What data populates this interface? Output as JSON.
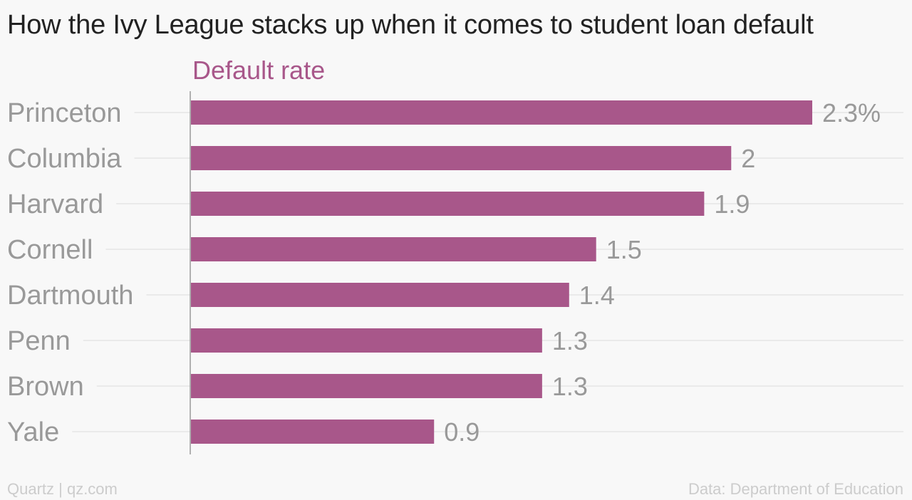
{
  "title": "How the Ivy League stacks up when it comes to student loan default",
  "footer": {
    "source_left": "Quartz | qz.com",
    "source_right": "Data: Department of Education"
  },
  "colors": {
    "bar": "#a8578a",
    "series_label": "#a8578a",
    "category_text": "#999999",
    "value_text": "#999999",
    "gridline": "#e6e6e6",
    "axis": "#999999",
    "title": "#222222",
    "footer": "#cccccc"
  },
  "chart_data": {
    "type": "bar",
    "orientation": "horizontal",
    "title": "How the Ivy League stacks up when it comes to student loan default",
    "series_label": "Default rate",
    "categories": [
      "Princeton",
      "Columbia",
      "Harvard",
      "Cornell",
      "Dartmouth",
      "Penn",
      "Brown",
      "Yale"
    ],
    "values": [
      2.3,
      2,
      1.9,
      1.5,
      1.4,
      1.3,
      1.3,
      0.9
    ],
    "value_labels": [
      "2.3%",
      "2",
      "1.9",
      "1.5",
      "1.4",
      "1.3",
      "1.3",
      "0.9"
    ],
    "unit": "%",
    "xlim": [
      0,
      2.3
    ],
    "xlabel": "",
    "ylabel": "",
    "grid": true,
    "legend": "none"
  }
}
